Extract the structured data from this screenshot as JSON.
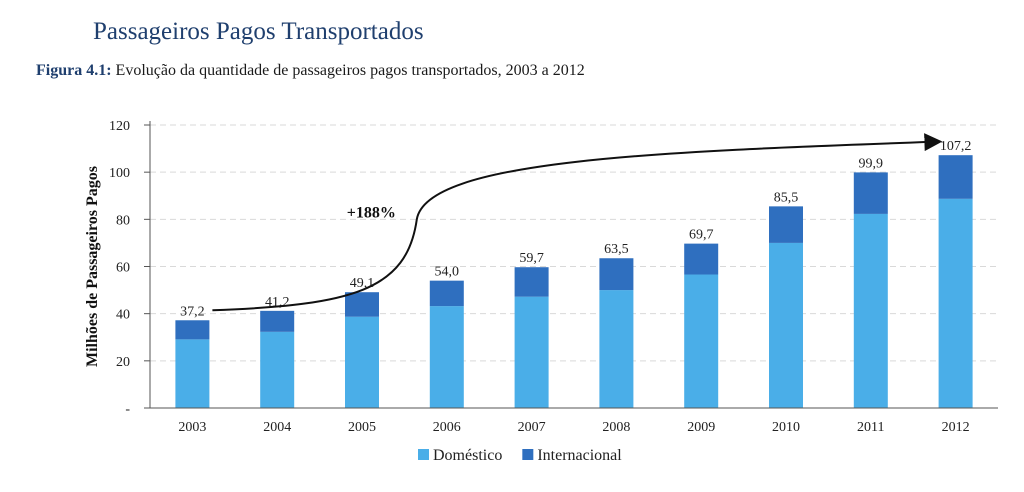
{
  "page": {
    "heading": "Passageiros Pagos Transportados",
    "figure_label": "Figura 4.1:",
    "figure_caption": "Evolução da quantidade de passageiros pagos transportados, 2003 a 2012"
  },
  "chart_data": {
    "type": "bar",
    "stacked": true,
    "categories": [
      "2003",
      "2004",
      "2005",
      "2006",
      "2007",
      "2008",
      "2009",
      "2010",
      "2011",
      "2012"
    ],
    "series": [
      {
        "name": "Doméstico",
        "color": "#4aaee8",
        "values": [
          29.1,
          32.3,
          38.7,
          43.2,
          47.2,
          50.0,
          56.6,
          70.0,
          82.3,
          88.7
        ]
      },
      {
        "name": "Internacional",
        "color": "#2f6fbf",
        "values": [
          8.1,
          8.9,
          10.4,
          10.8,
          12.5,
          13.5,
          13.1,
          15.5,
          17.6,
          18.5
        ]
      }
    ],
    "totals": [
      37.2,
      41.2,
      49.1,
      54.0,
      59.7,
      63.5,
      69.7,
      85.5,
      99.9,
      107.2
    ],
    "total_labels": [
      "37,2",
      "41,2",
      "49,1",
      "54,0",
      "59,7",
      "63,5",
      "69,7",
      "85,5",
      "99,9",
      "107,2"
    ],
    "ylabel": "Milhões de Passageiros Pagos",
    "xlabel": "",
    "ylim": [
      0,
      120
    ],
    "yticks": [
      0,
      20,
      40,
      60,
      80,
      100,
      120
    ],
    "ytick_labels": [
      "-",
      "20",
      "40",
      "60",
      "80",
      "100",
      "120"
    ],
    "grid": true,
    "legend_position": "bottom-center",
    "annotation": {
      "text": "+188%",
      "from": "2003",
      "to": "2012"
    }
  }
}
